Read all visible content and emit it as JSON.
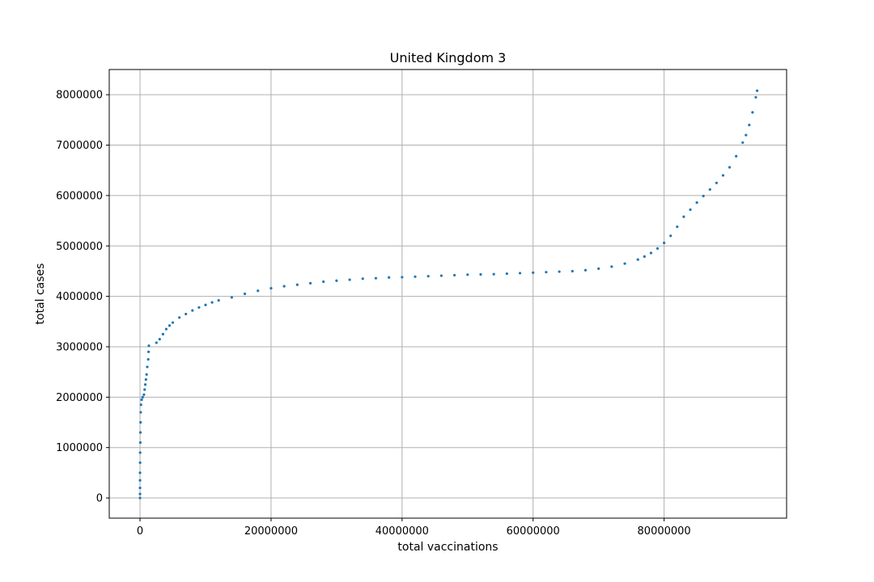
{
  "chart_data": {
    "type": "scatter",
    "title": "United Kingdom 3",
    "xlabel": "total vaccinations",
    "ylabel": "total cases",
    "xlim": [
      -4700000,
      98700000
    ],
    "ylim": [
      -400000,
      8500000
    ],
    "xticks": [
      0,
      20000000,
      40000000,
      60000000,
      80000000
    ],
    "yticks": [
      0,
      1000000,
      2000000,
      3000000,
      4000000,
      5000000,
      6000000,
      7000000,
      8000000
    ],
    "grid": true,
    "marker_color": "#1f77b4",
    "series": [
      {
        "points": [
          [
            0,
            0
          ],
          [
            0,
            80000
          ],
          [
            0,
            200000
          ],
          [
            0,
            350000
          ],
          [
            0,
            500000
          ],
          [
            10000,
            700000
          ],
          [
            20000,
            900000
          ],
          [
            40000,
            1100000
          ],
          [
            60000,
            1300000
          ],
          [
            80000,
            1500000
          ],
          [
            100000,
            1700000
          ],
          [
            150000,
            1850000
          ],
          [
            250000,
            1950000
          ],
          [
            400000,
            2000000
          ],
          [
            600000,
            2050000
          ],
          [
            700000,
            2150000
          ],
          [
            800000,
            2250000
          ],
          [
            900000,
            2350000
          ],
          [
            1000000,
            2450000
          ],
          [
            1100000,
            2600000
          ],
          [
            1250000,
            2750000
          ],
          [
            1300000,
            2900000
          ],
          [
            1350000,
            3020000
          ],
          [
            2500000,
            3080000
          ],
          [
            3000000,
            3150000
          ],
          [
            3500000,
            3250000
          ],
          [
            4000000,
            3350000
          ],
          [
            4500000,
            3420000
          ],
          [
            5000000,
            3480000
          ],
          [
            6000000,
            3580000
          ],
          [
            7000000,
            3650000
          ],
          [
            8000000,
            3720000
          ],
          [
            9000000,
            3780000
          ],
          [
            10000000,
            3830000
          ],
          [
            11000000,
            3880000
          ],
          [
            12000000,
            3920000
          ],
          [
            14000000,
            3980000
          ],
          [
            16000000,
            4050000
          ],
          [
            18000000,
            4110000
          ],
          [
            20000000,
            4160000
          ],
          [
            22000000,
            4200000
          ],
          [
            24000000,
            4230000
          ],
          [
            26000000,
            4260000
          ],
          [
            28000000,
            4290000
          ],
          [
            30000000,
            4310000
          ],
          [
            32000000,
            4330000
          ],
          [
            34000000,
            4350000
          ],
          [
            36000000,
            4360000
          ],
          [
            38000000,
            4375000
          ],
          [
            40000000,
            4380000
          ],
          [
            42000000,
            4390000
          ],
          [
            44000000,
            4400000
          ],
          [
            46000000,
            4410000
          ],
          [
            48000000,
            4420000
          ],
          [
            50000000,
            4430000
          ],
          [
            52000000,
            4435000
          ],
          [
            54000000,
            4440000
          ],
          [
            56000000,
            4450000
          ],
          [
            58000000,
            4460000
          ],
          [
            60000000,
            4470000
          ],
          [
            62000000,
            4480000
          ],
          [
            64000000,
            4490000
          ],
          [
            66000000,
            4500000
          ],
          [
            68000000,
            4520000
          ],
          [
            70000000,
            4550000
          ],
          [
            72000000,
            4590000
          ],
          [
            74000000,
            4650000
          ],
          [
            76000000,
            4730000
          ],
          [
            77000000,
            4790000
          ],
          [
            78000000,
            4860000
          ],
          [
            79000000,
            4950000
          ],
          [
            80000000,
            5060000
          ],
          [
            81000000,
            5200000
          ],
          [
            82000000,
            5380000
          ],
          [
            83000000,
            5580000
          ],
          [
            84000000,
            5720000
          ],
          [
            85000000,
            5860000
          ],
          [
            86000000,
            5990000
          ],
          [
            87000000,
            6120000
          ],
          [
            88000000,
            6250000
          ],
          [
            89000000,
            6400000
          ],
          [
            90000000,
            6560000
          ],
          [
            91000000,
            6780000
          ],
          [
            92000000,
            7050000
          ],
          [
            92500000,
            7200000
          ],
          [
            93000000,
            7400000
          ],
          [
            93500000,
            7650000
          ],
          [
            94000000,
            7950000
          ],
          [
            94200000,
            8080000
          ]
        ]
      }
    ]
  }
}
